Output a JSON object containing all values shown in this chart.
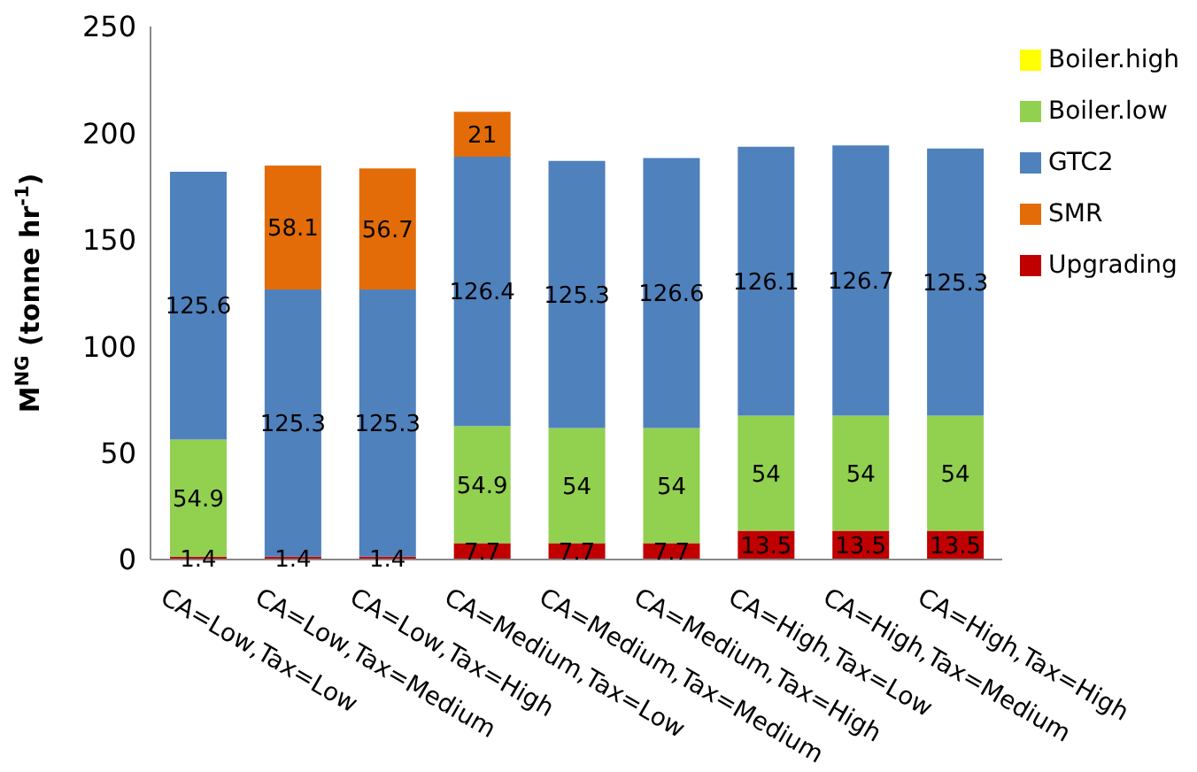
{
  "chart_data": {
    "type": "bar",
    "stacked": true,
    "ylabel": "M$^{NG}$ (tonne hr$^{-1}$)",
    "categories": [
      "CA=Low,Tax=Low",
      "CA=Low,Tax=Medium",
      "CA=Low,Tax=High",
      "CA=Medium,Tax=Low",
      "CA=Medium,Tax=Medium",
      "CA=Medium,Tax=High",
      "CA=High,Tax=Low",
      "CA=High,Tax=Medium",
      "CA=High,Tax=High"
    ],
    "series": [
      {
        "name": "Upgrading",
        "color": "#c00000",
        "values": [
          1.4,
          1.4,
          1.4,
          7.7,
          7.7,
          7.7,
          13.5,
          13.5,
          13.5
        ]
      },
      {
        "name": "Boiler.low",
        "color": "#92d050",
        "values": [
          54.9,
          null,
          null,
          54.9,
          54,
          54,
          54,
          54,
          54
        ]
      },
      {
        "name": "GTC2",
        "color": "#4f81bd",
        "values": [
          125.6,
          125.3,
          125.3,
          126.4,
          125.3,
          126.6,
          126.1,
          126.7,
          125.3
        ]
      },
      {
        "name": "SMR",
        "color": "#e36c09",
        "values": [
          null,
          58.1,
          56.7,
          21,
          null,
          null,
          null,
          null,
          null
        ]
      },
      {
        "name": "Boiler.high",
        "color": "#ffff00",
        "values": [
          null,
          null,
          null,
          null,
          null,
          null,
          null,
          null,
          null
        ]
      }
    ],
    "ylim": [
      0,
      250
    ],
    "yticks": [
      0,
      50,
      100,
      150,
      200,
      250
    ],
    "data_labels": true,
    "legend": "right"
  }
}
